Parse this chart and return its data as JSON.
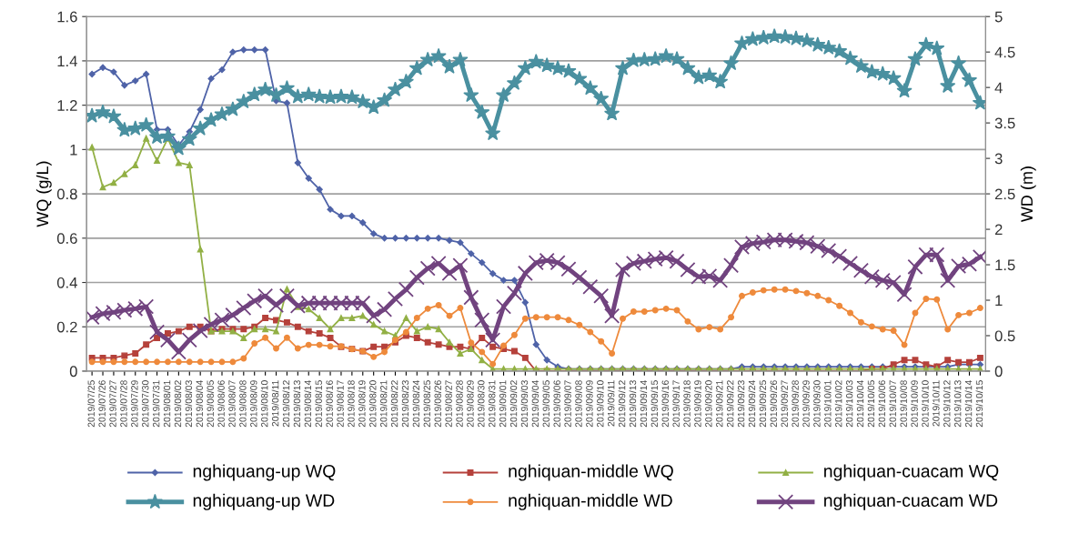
{
  "chart_data": {
    "type": "line",
    "ylabel": "WQ (g/L)",
    "y2label": "WD (m)",
    "categories": [
      "2019/07/25",
      "2019/07/26",
      "2019/07/27",
      "2019/07/28",
      "2019/07/29",
      "2019/07/30",
      "2019/07/31",
      "2019/08/01",
      "2019/08/02",
      "2019/08/03",
      "2019/08/04",
      "2019/08/05",
      "2019/08/06",
      "2019/08/07",
      "2019/08/08",
      "2019/08/09",
      "2019/08/10",
      "2019/08/11",
      "2019/08/12",
      "2019/08/13",
      "2019/08/14",
      "2019/08/15",
      "2019/08/16",
      "2019/08/17",
      "2019/08/18",
      "2019/08/19",
      "2019/08/20",
      "2019/08/21",
      "2019/08/22",
      "2019/08/23",
      "2019/08/24",
      "2019/08/25",
      "2019/08/26",
      "2019/08/27",
      "2019/08/28",
      "2019/08/29",
      "2019/08/30",
      "2019/08/31",
      "2019/09/01",
      "2019/09/02",
      "2019/09/03",
      "2019/09/04",
      "2019/09/05",
      "2019/09/06",
      "2019/09/07",
      "2019/09/08",
      "2019/09/09",
      "2019/09/10",
      "2019/09/11",
      "2019/09/12",
      "2019/09/13",
      "2019/09/14",
      "2019/09/15",
      "2019/09/16",
      "2019/09/17",
      "2019/09/18",
      "2019/09/19",
      "2019/09/20",
      "2019/09/21",
      "2019/09/22",
      "2019/09/23",
      "2019/09/24",
      "2019/09/25",
      "2019/09/26",
      "2019/09/27",
      "2019/09/28",
      "2019/09/29",
      "2019/09/30",
      "2019/10/01",
      "2019/10/02",
      "2019/10/03",
      "2019/10/04",
      "2019/10/05",
      "2019/10/06",
      "2019/10/07",
      "2019/10/08",
      "2019/10/09",
      "2019/10/10",
      "2019/10/11",
      "2019/10/12",
      "2019/10/13",
      "2019/10/14",
      "2019/10/15"
    ],
    "series": [
      {
        "name": "nghiquang-up WQ",
        "color": "#4f63a8",
        "marker": "diamond",
        "values": [
          1.34,
          1.37,
          1.35,
          1.29,
          1.31,
          1.34,
          1.09,
          1.09,
          1.02,
          1.08,
          1.18,
          1.32,
          1.36,
          1.44,
          1.45,
          1.45,
          1.45,
          1.22,
          1.21,
          0.94,
          0.87,
          0.82,
          0.73,
          0.7,
          0.7,
          0.67,
          0.62,
          0.6,
          0.6,
          0.6,
          0.6,
          0.6,
          0.6,
          0.59,
          0.58,
          0.53,
          0.49,
          0.44,
          0.41,
          0.41,
          0.31,
          0.12,
          0.05,
          0.02,
          0.01,
          0.01,
          0.01,
          0.01,
          0.01,
          0.01,
          0.01,
          0.01,
          0.01,
          0.01,
          0.01,
          0.01,
          0.01,
          0.01,
          0.01,
          0.01,
          0.02,
          0.02,
          0.02,
          0.02,
          0.02,
          0.02,
          0.02,
          0.02,
          0.02,
          0.02,
          0.02,
          0.02,
          0.02,
          0.02,
          0.02,
          0.02,
          0.02,
          0.02,
          0.02,
          0.02,
          0.03,
          0.03,
          0.03
        ]
      },
      {
        "name": "nghiquan-middle WQ",
        "color": "#b5413b",
        "marker": "square",
        "values": [
          0.06,
          0.06,
          0.06,
          0.07,
          0.08,
          0.12,
          0.15,
          0.17,
          0.18,
          0.2,
          0.2,
          0.18,
          0.19,
          0.19,
          0.19,
          0.2,
          0.24,
          0.23,
          0.22,
          0.2,
          0.18,
          0.17,
          0.15,
          0.11,
          0.1,
          0.09,
          0.11,
          0.11,
          0.13,
          0.16,
          0.15,
          0.13,
          0.12,
          0.11,
          0.11,
          0.1,
          0.15,
          0.11,
          0.1,
          0.09,
          0.06,
          0.0,
          0.0,
          0.0,
          0.0,
          0.0,
          0.0,
          0.0,
          0.0,
          0.0,
          0.0,
          0.0,
          0.0,
          0.0,
          0.0,
          0.0,
          0.0,
          0.0,
          0.0,
          0.0,
          0.0,
          0.0,
          0.0,
          0.0,
          0.0,
          0.0,
          0.0,
          0.0,
          0.0,
          0.0,
          0.0,
          0.0,
          0.01,
          0.01,
          0.03,
          0.05,
          0.05,
          0.03,
          0.02,
          0.05,
          0.04,
          0.04,
          0.06
        ]
      },
      {
        "name": "nghiquan-cuacam WQ",
        "color": "#92b045",
        "marker": "triangle",
        "values": [
          1.01,
          0.83,
          0.85,
          0.89,
          0.93,
          1.05,
          0.95,
          1.05,
          0.94,
          0.93,
          0.55,
          0.18,
          0.18,
          0.18,
          0.15,
          0.19,
          0.19,
          0.18,
          0.37,
          0.29,
          0.28,
          0.24,
          0.19,
          0.24,
          0.24,
          0.25,
          0.21,
          0.18,
          0.16,
          0.24,
          0.18,
          0.2,
          0.19,
          0.13,
          0.08,
          0.1,
          0.05,
          0.01,
          0.01,
          0.01,
          0.01,
          0.01,
          0.01,
          0.01,
          0.01,
          0.01,
          0.01,
          0.01,
          0.01,
          0.01,
          0.01,
          0.01,
          0.01,
          0.01,
          0.01,
          0.01,
          0.01,
          0.01,
          0.01,
          0.01,
          0.01,
          0.01,
          0.01,
          0.01,
          0.01,
          0.01,
          0.01,
          0.01,
          0.01,
          0.01,
          0.01,
          0.01,
          0.01,
          0.01,
          0.01,
          0.01,
          0.01,
          0.01,
          0.01,
          0.01,
          0.01,
          0.01,
          0.01
        ]
      },
      {
        "name": "nghiquang-up WD",
        "color": "#4a90a0",
        "marker": "star",
        "axis": "y2",
        "values": [
          3.6,
          3.65,
          3.59,
          3.4,
          3.42,
          3.47,
          3.3,
          3.31,
          3.14,
          3.27,
          3.42,
          3.54,
          3.62,
          3.69,
          3.8,
          3.9,
          3.97,
          3.89,
          3.99,
          3.87,
          3.9,
          3.87,
          3.86,
          3.87,
          3.86,
          3.8,
          3.72,
          3.82,
          3.97,
          4.08,
          4.27,
          4.39,
          4.44,
          4.29,
          4.39,
          3.89,
          3.65,
          3.35,
          3.89,
          4.06,
          4.27,
          4.36,
          4.31,
          4.27,
          4.23,
          4.12,
          3.99,
          3.84,
          3.63,
          4.27,
          4.38,
          4.39,
          4.4,
          4.44,
          4.4,
          4.27,
          4.14,
          4.17,
          4.08,
          4.34,
          4.62,
          4.68,
          4.7,
          4.72,
          4.71,
          4.69,
          4.66,
          4.6,
          4.56,
          4.51,
          4.41,
          4.3,
          4.22,
          4.19,
          4.13,
          3.95,
          4.4,
          4.6,
          4.55,
          4.02,
          4.34,
          4.1,
          3.78
        ]
      },
      {
        "name": "nghiquan-middle WD",
        "color": "#ee8a3c",
        "marker": "circle",
        "axis": "y2",
        "values": [
          0.13,
          0.13,
          0.13,
          0.13,
          0.13,
          0.13,
          0.13,
          0.13,
          0.13,
          0.13,
          0.13,
          0.13,
          0.13,
          0.13,
          0.18,
          0.39,
          0.47,
          0.32,
          0.47,
          0.32,
          0.37,
          0.37,
          0.35,
          0.35,
          0.31,
          0.28,
          0.2,
          0.27,
          0.44,
          0.55,
          0.75,
          0.88,
          0.93,
          0.78,
          0.89,
          0.4,
          0.27,
          0.1,
          0.36,
          0.51,
          0.74,
          0.76,
          0.76,
          0.76,
          0.72,
          0.65,
          0.55,
          0.42,
          0.25,
          0.74,
          0.84,
          0.84,
          0.86,
          0.88,
          0.86,
          0.7,
          0.59,
          0.62,
          0.59,
          0.76,
          1.06,
          1.11,
          1.14,
          1.15,
          1.15,
          1.13,
          1.1,
          1.06,
          1.0,
          0.92,
          0.82,
          0.69,
          0.63,
          0.59,
          0.57,
          0.37,
          0.82,
          1.02,
          1.01,
          0.59,
          0.79,
          0.82,
          0.89
        ]
      },
      {
        "name": "nghiquan-cuacam WD",
        "color": "#71437f",
        "marker": "cross",
        "axis": "y2",
        "values": [
          0.76,
          0.81,
          0.83,
          0.86,
          0.88,
          0.91,
          0.55,
          0.44,
          0.27,
          0.44,
          0.57,
          0.66,
          0.72,
          0.79,
          0.89,
          0.99,
          1.06,
          0.93,
          1.06,
          0.92,
          0.96,
          0.96,
          0.96,
          0.96,
          0.96,
          0.96,
          0.78,
          0.87,
          1.02,
          1.15,
          1.32,
          1.45,
          1.52,
          1.38,
          1.49,
          1.04,
          0.72,
          0.44,
          0.91,
          1.1,
          1.38,
          1.53,
          1.56,
          1.53,
          1.44,
          1.32,
          1.19,
          1.06,
          0.78,
          1.43,
          1.52,
          1.55,
          1.58,
          1.6,
          1.55,
          1.43,
          1.33,
          1.34,
          1.28,
          1.49,
          1.75,
          1.8,
          1.82,
          1.85,
          1.85,
          1.83,
          1.81,
          1.76,
          1.7,
          1.62,
          1.52,
          1.42,
          1.33,
          1.28,
          1.25,
          1.08,
          1.47,
          1.64,
          1.64,
          1.28,
          1.48,
          1.51,
          1.61
        ]
      }
    ],
    "ylim": [
      0,
      1.6
    ],
    "yticks": [
      0,
      0.2,
      0.4,
      0.6,
      0.8,
      1,
      1.2,
      1.4,
      1.6
    ],
    "y2lim": [
      0,
      5
    ],
    "y2ticks": [
      0,
      0.5,
      1,
      1.5,
      2,
      2.5,
      3,
      3.5,
      4,
      4.5,
      5
    ],
    "grid": "y",
    "legend": "bottom",
    "line_style": "solid"
  }
}
